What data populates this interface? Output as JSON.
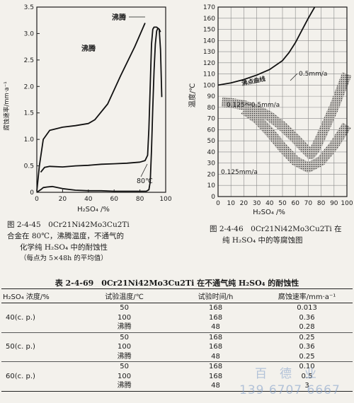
{
  "chart_data": [
    {
      "type": "line",
      "figure_no": "图 2-4-45",
      "ylabel": "腐蚀速率/mm·a⁻¹",
      "xlabel": "H₂SO₄ /%",
      "xlim": [
        0,
        100
      ],
      "ylim": [
        0,
        3.5
      ],
      "xticks": [
        "0",
        "20",
        "40",
        "60",
        "80",
        "100"
      ],
      "yticks": [
        "0",
        "0.5",
        "1.0",
        "1.5",
        "2.0",
        "2.5",
        "3.0",
        "3.5"
      ],
      "annotations": [
        "沸腾",
        "80℃"
      ],
      "series": [
        {
          "label": "沸腾",
          "x": [
            0,
            2,
            5,
            10,
            20,
            30,
            40,
            45,
            55,
            65,
            76,
            84
          ],
          "y": [
            0.02,
            0.5,
            1.0,
            1.17,
            1.23,
            1.26,
            1.3,
            1.37,
            1.67,
            2.2,
            2.75,
            3.2
          ]
        },
        {
          "label": "沸腾",
          "x": [
            3,
            6,
            10,
            20,
            30,
            40,
            50,
            60,
            70,
            80,
            84,
            86,
            87,
            89,
            90,
            91,
            93,
            95,
            96,
            97
          ],
          "y": [
            0.38,
            0.47,
            0.49,
            0.48,
            0.5,
            0.51,
            0.53,
            0.54,
            0.55,
            0.57,
            0.6,
            0.7,
            1.2,
            2.8,
            3.08,
            3.12,
            3.12,
            3.08,
            2.7,
            1.8
          ]
        },
        {
          "label": "80℃",
          "x": [
            0,
            3,
            5,
            8,
            12,
            20,
            30,
            40,
            50,
            60,
            70,
            80,
            85,
            87,
            88,
            89,
            90,
            91,
            92,
            93,
            94,
            95,
            96
          ],
          "y": [
            0.0,
            0.05,
            0.09,
            0.1,
            0.11,
            0.07,
            0.04,
            0.03,
            0.03,
            0.02,
            0.02,
            0.02,
            0.02,
            0.05,
            0.2,
            0.8,
            1.6,
            2.3,
            2.8,
            3.05,
            3.1,
            3.08,
            3.03
          ]
        }
      ]
    },
    {
      "type": "line",
      "figure_no": "图 2-4-46",
      "ylabel": "温度/℃",
      "xlabel": "H₂SO₄ /%",
      "xlim": [
        0,
        100
      ],
      "ylim": [
        0,
        170
      ],
      "xticks": [
        "0",
        "10",
        "20",
        "30",
        "40",
        "50",
        "60",
        "70",
        "80",
        "90",
        "100"
      ],
      "yticks": [
        "0",
        "10",
        "20",
        "30",
        "40",
        "50",
        "60",
        "70",
        "80",
        "90",
        "100",
        "110",
        "120",
        "130",
        "140",
        "150",
        "160",
        "170"
      ],
      "annotations": [
        "沸点曲线",
        "0.5mm/a",
        "0.125～0.5mm/a",
        "0.125mm/a"
      ],
      "series": [
        {
          "label": "沸点曲线",
          "x": [
            0,
            10,
            20,
            30,
            40,
            50,
            55,
            60,
            65,
            70,
            75
          ],
          "y": [
            100,
            102,
            105,
            109,
            114,
            122,
            129,
            138,
            149,
            160,
            170
          ]
        },
        {
          "label": "0.5mm/a",
          "x": [
            3,
            10,
            20,
            30,
            40,
            50,
            60,
            65,
            70,
            72,
            75,
            80,
            90,
            100
          ],
          "y": [
            85,
            84,
            82,
            78,
            72,
            63,
            52,
            46,
            40,
            38,
            42,
            54,
            80,
            110
          ]
        },
        {
          "label": "0.125mm/a",
          "x": [
            20,
            30,
            40,
            50,
            60,
            70,
            80,
            90,
            100
          ],
          "y": [
            78,
            70,
            58,
            44,
            32,
            26,
            32,
            46,
            64
          ]
        }
      ]
    }
  ],
  "captions": {
    "left": {
      "line1": "图 2-4-45　0Cr21Ni42Mo3Cu2Ti",
      "line2": "合金在 80℃，沸腾温度，不通气的",
      "line3": "化学纯 H₂SO₄ 中的耐蚀性",
      "line4": "（每点为 5×48h 的平均值）"
    },
    "right": {
      "line1": "图 2-4-46　0Cr21Ni42Mo3Cu2Ti 在",
      "line2": "纯 H₂SO₄ 中的等腐蚀图"
    }
  },
  "table": {
    "title": "表 2-4-69　0Cr21Ni42Mo3Cu2Ti 在不通气纯 H₂SO₄ 的耐蚀性",
    "headers": [
      "H₂SO₄ 浓度/%",
      "试验温度/℃",
      "试验时间/h",
      "腐蚀速率/mm·a⁻¹"
    ],
    "groups": [
      {
        "concentration": "40(c. p.)",
        "rows": [
          {
            "temp": "50",
            "time": "168",
            "rate": "0.013"
          },
          {
            "temp": "100",
            "time": "168",
            "rate": "0.36"
          },
          {
            "temp": "沸腾",
            "time": "48",
            "rate": "0.28"
          }
        ]
      },
      {
        "concentration": "50(c. p.)",
        "rows": [
          {
            "temp": "50",
            "time": "168",
            "rate": "0.25"
          },
          {
            "temp": "100",
            "time": "168",
            "rate": "0.36"
          },
          {
            "temp": "沸腾",
            "time": "48",
            "rate": "0.25"
          }
        ]
      },
      {
        "concentration": "60(c. p.)",
        "rows": [
          {
            "temp": "50",
            "time": "168",
            "rate": "0.10"
          },
          {
            "temp": "100",
            "time": "168",
            "rate": "0.5"
          },
          {
            "temp": "沸腾",
            "time": "48",
            "rate": "3"
          }
        ]
      }
    ]
  },
  "watermark": {
    "line1": "百德业",
    "line2": "139 6707 6667"
  }
}
